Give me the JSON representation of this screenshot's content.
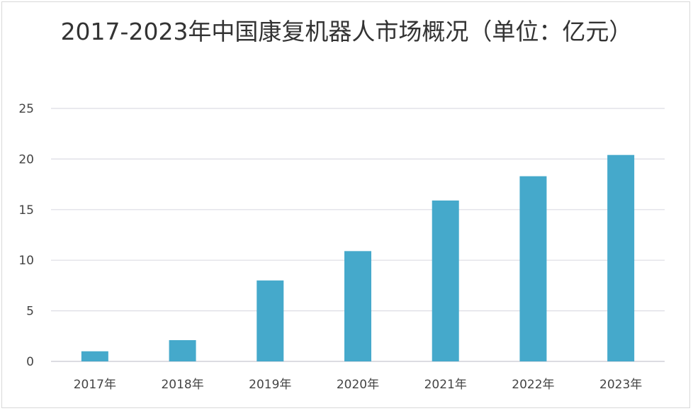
{
  "chart_data": {
    "type": "bar",
    "title": "2017-2023年中国康复机器人市场概况（单位：亿元）",
    "categories": [
      "2017年",
      "2018年",
      "2019年",
      "2020年",
      "2021年",
      "2022年",
      "2023年"
    ],
    "values": [
      1.0,
      2.1,
      8.0,
      10.9,
      15.9,
      18.3,
      20.4
    ],
    "xlabel": "",
    "ylabel": "",
    "ylim": [
      0,
      25
    ],
    "yticks": [
      "0",
      "5",
      "10",
      "15",
      "20",
      "25"
    ],
    "grid": true,
    "legend": "none",
    "bar_color": "#45a9cb"
  }
}
